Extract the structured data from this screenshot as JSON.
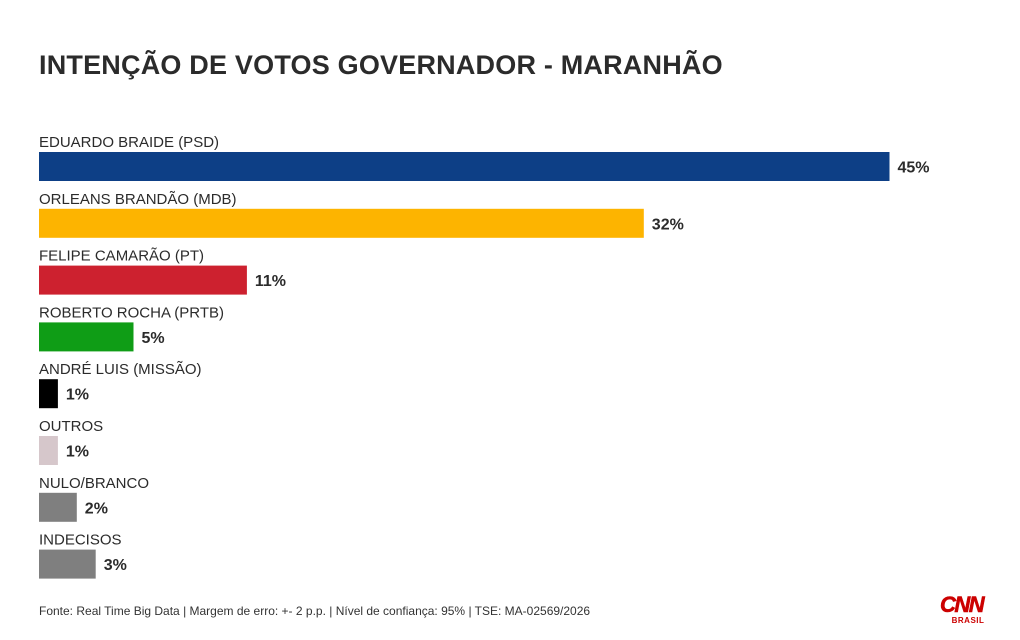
{
  "title": "INTENÇÃO DE VOTOS GOVERNADOR - MARANHÃO",
  "chart_data": {
    "type": "bar",
    "orientation": "horizontal",
    "categories": [
      "EDUARDO BRAIDE (PSD)",
      "ORLEANS BRANDÃO (MDB)",
      "FELIPE CAMARÃO (PT)",
      "ROBERTO ROCHA (PRTB)",
      "ANDRÉ LUIS (MISSÃO)",
      "OUTROS",
      "NULO/BRANCO",
      "INDECISOS"
    ],
    "values": [
      45,
      32,
      11,
      5,
      1,
      1,
      2,
      3
    ],
    "value_labels": [
      "45%",
      "32%",
      "11%",
      "5%",
      "1%",
      "1%",
      "2%",
      "3%"
    ],
    "colors": [
      "#0d3f86",
      "#fdb400",
      "#cd212f",
      "#0f9d16",
      "#000000",
      "#d6c7cb",
      "#7f7f7f",
      "#7f7f7f"
    ],
    "unit": "%",
    "grid": false,
    "legend": "none"
  },
  "footer": "Fonte: Real Time Big Data | Margem de erro: +- 2 p.p. | Nível de confiança: 95% | TSE: MA-02569/2026",
  "logo": {
    "text": "CNN",
    "subtext": "BRASIL",
    "color": "#cc0000"
  }
}
